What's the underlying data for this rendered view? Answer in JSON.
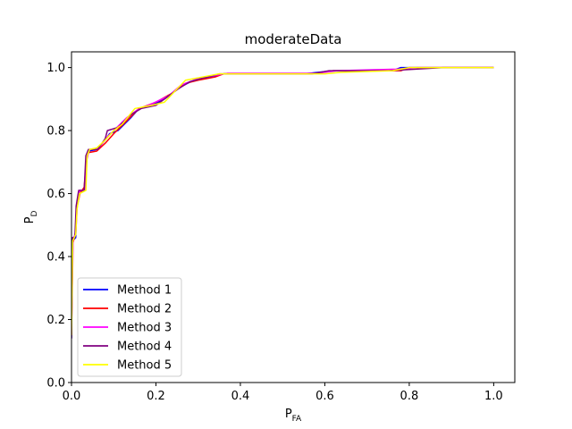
{
  "chart_data": {
    "type": "line",
    "title": "moderateData",
    "xlabel": {
      "main": "P",
      "sub": "FA"
    },
    "ylabel": {
      "main": "P",
      "sub": "D"
    },
    "xlim": [
      0.0,
      1.05
    ],
    "ylim": [
      0.0,
      1.05
    ],
    "xticks": [
      0.0,
      0.2,
      0.4,
      0.6,
      0.8,
      1.0
    ],
    "yticks": [
      0.0,
      0.2,
      0.4,
      0.6,
      0.8,
      1.0
    ],
    "xtick_labels": [
      "0.0",
      "0.2",
      "0.4",
      "0.6",
      "0.8",
      "1.0"
    ],
    "ytick_labels": [
      "0.0",
      "0.2",
      "0.4",
      "0.6",
      "0.8",
      "1.0"
    ],
    "grid": false,
    "legend_position": "lower-left",
    "series": [
      {
        "name": "Method 1",
        "color": "#0000ff",
        "points": [
          [
            0,
            0.14
          ],
          [
            0.002,
            0.45
          ],
          [
            0.01,
            0.46
          ],
          [
            0.012,
            0.56
          ],
          [
            0.018,
            0.6
          ],
          [
            0.032,
            0.61
          ],
          [
            0.036,
            0.72
          ],
          [
            0.04,
            0.735
          ],
          [
            0.06,
            0.74
          ],
          [
            0.08,
            0.77
          ],
          [
            0.09,
            0.79
          ],
          [
            0.11,
            0.8
          ],
          [
            0.14,
            0.84
          ],
          [
            0.16,
            0.87
          ],
          [
            0.19,
            0.88
          ],
          [
            0.22,
            0.9
          ],
          [
            0.26,
            0.94
          ],
          [
            0.29,
            0.96
          ],
          [
            0.33,
            0.97
          ],
          [
            0.36,
            0.98
          ],
          [
            0.55,
            0.98
          ],
          [
            0.62,
            0.99
          ],
          [
            0.76,
            0.99
          ],
          [
            0.78,
            1.0
          ],
          [
            1.0,
            1.0
          ]
        ]
      },
      {
        "name": "Method 2",
        "color": "#ff0000",
        "points": [
          [
            0,
            0.15
          ],
          [
            0.003,
            0.44
          ],
          [
            0.01,
            0.48
          ],
          [
            0.012,
            0.55
          ],
          [
            0.02,
            0.6
          ],
          [
            0.03,
            0.62
          ],
          [
            0.035,
            0.7
          ],
          [
            0.04,
            0.73
          ],
          [
            0.06,
            0.735
          ],
          [
            0.08,
            0.76
          ],
          [
            0.1,
            0.79
          ],
          [
            0.13,
            0.83
          ],
          [
            0.16,
            0.87
          ],
          [
            0.2,
            0.89
          ],
          [
            0.24,
            0.92
          ],
          [
            0.27,
            0.95
          ],
          [
            0.3,
            0.96
          ],
          [
            0.34,
            0.97
          ],
          [
            0.36,
            0.98
          ],
          [
            0.57,
            0.98
          ],
          [
            0.62,
            0.99
          ],
          [
            0.78,
            0.99
          ],
          [
            0.8,
            1.0
          ],
          [
            1.0,
            1.0
          ]
        ]
      },
      {
        "name": "Method 3",
        "color": "#ff00ff",
        "points": [
          [
            0,
            0.16
          ],
          [
            0.004,
            0.46
          ],
          [
            0.01,
            0.47
          ],
          [
            0.014,
            0.57
          ],
          [
            0.02,
            0.61
          ],
          [
            0.033,
            0.61
          ],
          [
            0.036,
            0.71
          ],
          [
            0.042,
            0.74
          ],
          [
            0.065,
            0.745
          ],
          [
            0.085,
            0.78
          ],
          [
            0.1,
            0.8
          ],
          [
            0.13,
            0.84
          ],
          [
            0.155,
            0.865
          ],
          [
            0.19,
            0.885
          ],
          [
            0.23,
            0.91
          ],
          [
            0.26,
            0.945
          ],
          [
            0.3,
            0.965
          ],
          [
            0.34,
            0.975
          ],
          [
            0.37,
            0.982
          ],
          [
            0.58,
            0.982
          ],
          [
            0.63,
            0.99
          ],
          [
            0.77,
            0.995
          ],
          [
            0.82,
            1.0
          ],
          [
            1.0,
            1.0
          ]
        ]
      },
      {
        "name": "Method 4",
        "color": "#800080",
        "points": [
          [
            0,
            0.14
          ],
          [
            0.002,
            0.46
          ],
          [
            0.008,
            0.46
          ],
          [
            0.011,
            0.56
          ],
          [
            0.017,
            0.61
          ],
          [
            0.03,
            0.61
          ],
          [
            0.034,
            0.72
          ],
          [
            0.04,
            0.74
          ],
          [
            0.062,
            0.74
          ],
          [
            0.08,
            0.775
          ],
          [
            0.085,
            0.8
          ],
          [
            0.11,
            0.81
          ],
          [
            0.14,
            0.85
          ],
          [
            0.165,
            0.87
          ],
          [
            0.2,
            0.88
          ],
          [
            0.25,
            0.93
          ],
          [
            0.28,
            0.955
          ],
          [
            0.32,
            0.97
          ],
          [
            0.35,
            0.98
          ],
          [
            0.57,
            0.98
          ],
          [
            0.61,
            0.99
          ],
          [
            0.75,
            0.99
          ],
          [
            0.88,
            1.0
          ],
          [
            1.0,
            1.0
          ]
        ]
      },
      {
        "name": "Method 5",
        "color": "#ffff00",
        "points": [
          [
            0,
            0.15
          ],
          [
            0.003,
            0.45
          ],
          [
            0.01,
            0.47
          ],
          [
            0.013,
            0.55
          ],
          [
            0.019,
            0.6
          ],
          [
            0.034,
            0.61
          ],
          [
            0.037,
            0.72
          ],
          [
            0.043,
            0.74
          ],
          [
            0.06,
            0.745
          ],
          [
            0.08,
            0.77
          ],
          [
            0.1,
            0.8
          ],
          [
            0.12,
            0.82
          ],
          [
            0.15,
            0.87
          ],
          [
            0.19,
            0.88
          ],
          [
            0.22,
            0.89
          ],
          [
            0.27,
            0.96
          ],
          [
            0.31,
            0.97
          ],
          [
            0.35,
            0.98
          ],
          [
            0.6,
            0.98
          ],
          [
            0.64,
            0.985
          ],
          [
            0.76,
            0.99
          ],
          [
            0.8,
            1.0
          ],
          [
            1.0,
            1.0
          ]
        ]
      }
    ]
  }
}
